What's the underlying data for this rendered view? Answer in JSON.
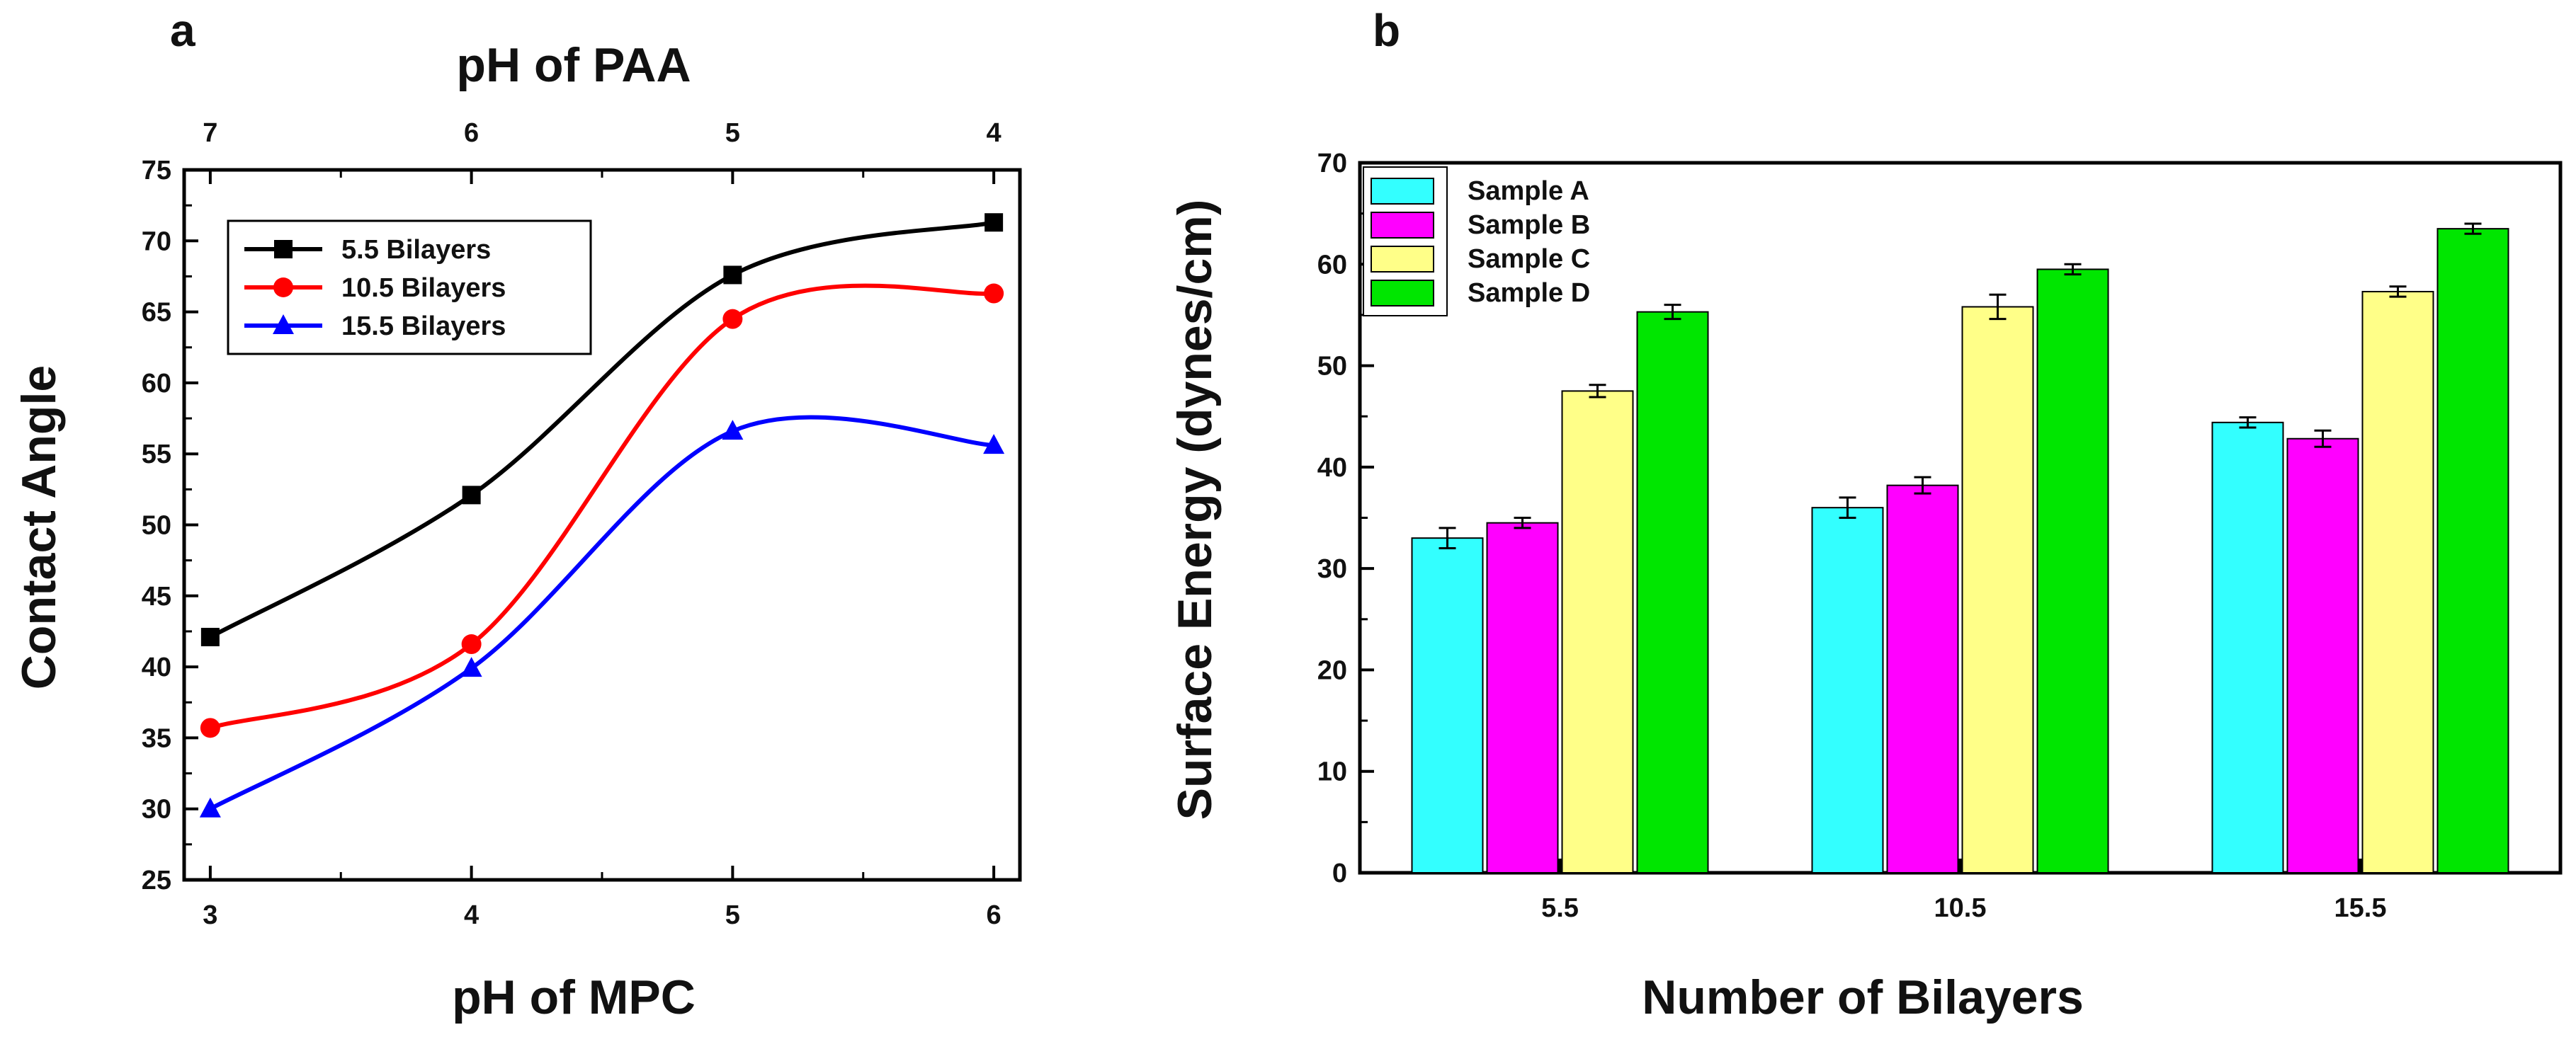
{
  "chart_data": [
    {
      "panel": "a",
      "type": "line",
      "xlabel": "pH of MPC",
      "x2label": "pH of PAA",
      "ylabel": "Contact Angle",
      "x": [
        3,
        4,
        5,
        6
      ],
      "xticks": [
        "3",
        "4",
        "5",
        "6"
      ],
      "x2ticks": [
        "7",
        "6",
        "5",
        "4"
      ],
      "xlim": [
        2.9,
        6.1
      ],
      "ylim": [
        25,
        75
      ],
      "yticks": [
        "25",
        "30",
        "35",
        "40",
        "45",
        "50",
        "55",
        "60",
        "65",
        "70",
        "75"
      ],
      "legend_position": "top-left",
      "series": [
        {
          "name": "5.5 Bilayers",
          "values": [
            42.1,
            52.1,
            67.6,
            71.3
          ],
          "color": "#000000",
          "marker": "square"
        },
        {
          "name": "10.5 Bilayers",
          "values": [
            35.7,
            41.6,
            64.5,
            66.3
          ],
          "color": "#ff0000",
          "marker": "circle"
        },
        {
          "name": "15.5 Bilayers",
          "values": [
            30.0,
            39.9,
            56.6,
            55.6
          ],
          "color": "#0000ff",
          "marker": "triangle"
        }
      ]
    },
    {
      "panel": "b",
      "type": "bar",
      "xlabel": "Number of Bilayers",
      "ylabel": "Surface Energy (dynes/cm)",
      "categories": [
        "5.5",
        "10.5",
        "15.5"
      ],
      "ylim": [
        0,
        70
      ],
      "yticks": [
        "0",
        "10",
        "20",
        "30",
        "40",
        "50",
        "60",
        "70"
      ],
      "legend_position": "top-left",
      "series": [
        {
          "name": "Sample A",
          "values": [
            33.0,
            36.0,
            44.4
          ],
          "errors": [
            1.0,
            1.0,
            0.5
          ],
          "color": "#33ffff"
        },
        {
          "name": "Sample B",
          "values": [
            34.5,
            38.2,
            42.8
          ],
          "errors": [
            0.5,
            0.8,
            0.8
          ],
          "color": "#ff00ff"
        },
        {
          "name": "Sample C",
          "values": [
            47.5,
            55.8,
            57.3
          ],
          "errors": [
            0.6,
            1.2,
            0.5
          ],
          "color": "#ffff88"
        },
        {
          "name": "Sample D",
          "values": [
            55.3,
            59.5,
            63.5
          ],
          "errors": [
            0.7,
            0.5,
            0.5
          ],
          "color": "#00e600"
        }
      ]
    }
  ]
}
